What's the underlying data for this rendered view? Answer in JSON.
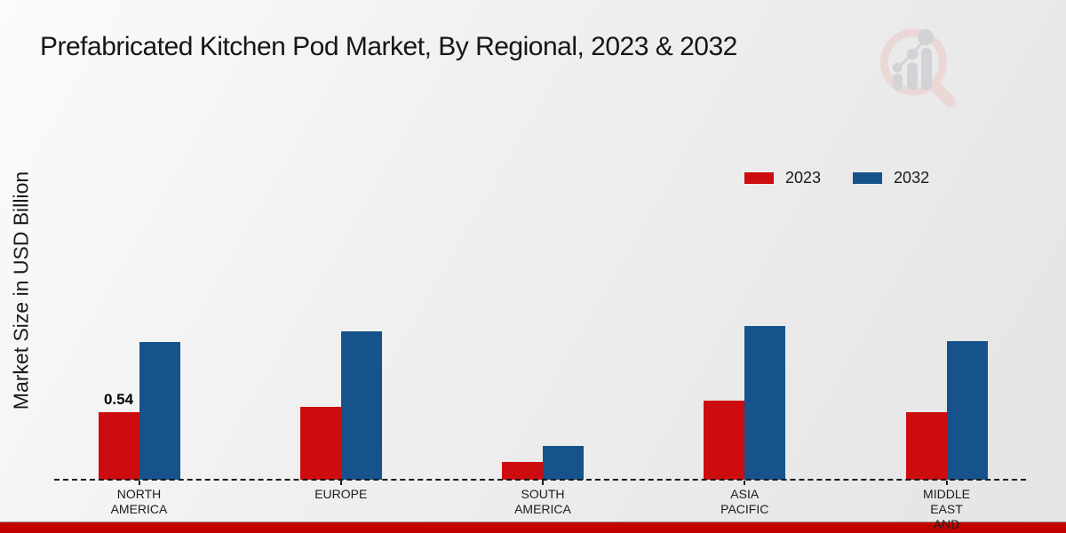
{
  "chart_data": {
    "type": "bar",
    "title": "Prefabricated Kitchen Pod Market, By Regional, 2023 & 2032",
    "ylabel": "Market Size in USD Billion",
    "xlabel": "",
    "categories": [
      "NORTH\nAMERICA",
      "EUROPE",
      "SOUTH\nAMERICA",
      "ASIA\nPACIFIC",
      "MIDDLE\nEAST\nAND"
    ],
    "series": [
      {
        "name": "2023",
        "color": "#cc0c0e",
        "values": [
          0.54,
          0.58,
          0.14,
          0.63,
          0.54
        ]
      },
      {
        "name": "2032",
        "color": "#16538c",
        "values": [
          1.1,
          1.19,
          0.27,
          1.23,
          1.11
        ]
      }
    ],
    "annotations": [
      {
        "category_index": 0,
        "series_index": 0,
        "text": "0.54"
      }
    ],
    "legend_position": "top-right",
    "ylim": [
      0,
      1.4
    ],
    "grid": false,
    "baseline_style": "dashed",
    "axis_color": "#1a1a1a"
  },
  "decor": {
    "footer_band_color": "#c40101",
    "logo_icon": "bar-chart-magnifier-watermark",
    "logo_ring_color": "#ecd7d7",
    "logo_bars_color": "#d3d3d7"
  }
}
